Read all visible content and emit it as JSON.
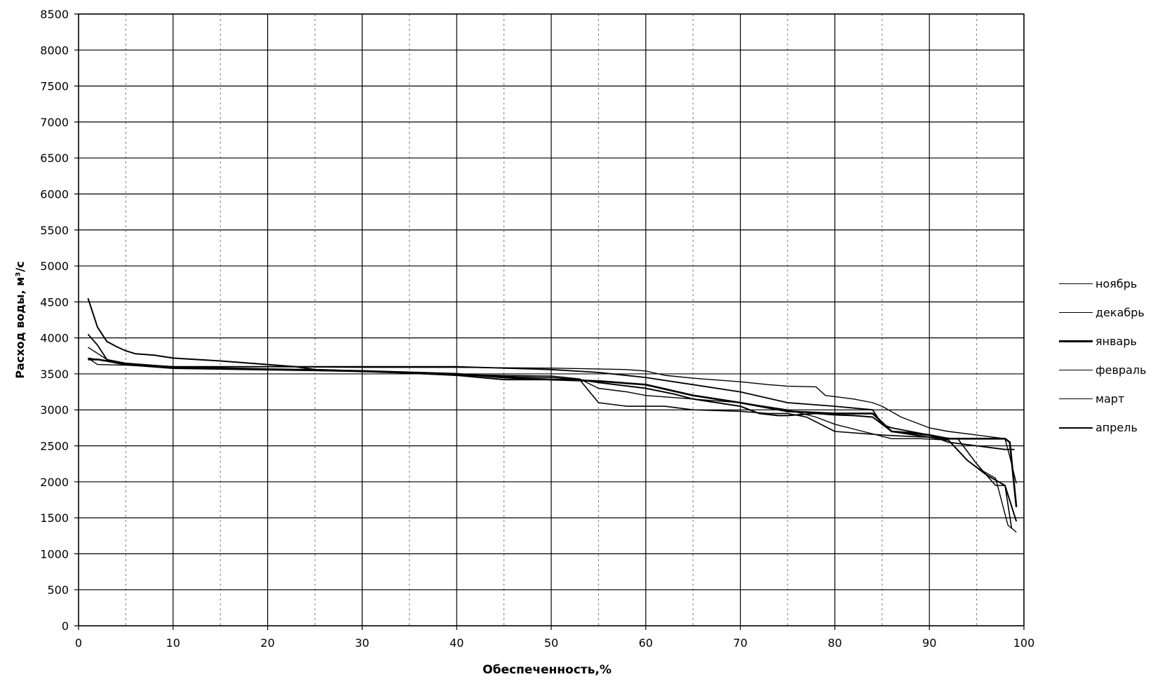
{
  "chart_data": {
    "type": "line",
    "title": "",
    "xlabel": "Обеспеченность,%",
    "ylabel": "Расход воды, м³/с",
    "xlim": [
      0,
      100
    ],
    "ylim": [
      0,
      8500
    ],
    "x_ticks": [
      "0",
      "10",
      "20",
      "30",
      "40",
      "50",
      "60",
      "70",
      "80",
      "90",
      "100"
    ],
    "y_ticks": [
      "0",
      "500",
      "1000",
      "1500",
      "2000",
      "2500",
      "3000",
      "3500",
      "4000",
      "4500",
      "5000",
      "5500",
      "6000",
      "6500",
      "7000",
      "7500",
      "8000",
      "8500"
    ],
    "grid": true,
    "legend_position": "right",
    "series": [
      {
        "name": "ноябрь",
        "color": "#000000",
        "points": [
          [
            1,
            3870
          ],
          [
            3,
            3700
          ],
          [
            5,
            3650
          ],
          [
            10,
            3600
          ],
          [
            20,
            3600
          ],
          [
            30,
            3590
          ],
          [
            40,
            3590
          ],
          [
            50,
            3580
          ],
          [
            58,
            3560
          ],
          [
            60,
            3540
          ],
          [
            62,
            3480
          ],
          [
            65,
            3440
          ],
          [
            70,
            3390
          ],
          [
            73,
            3350
          ],
          [
            75,
            3330
          ],
          [
            78,
            3320
          ],
          [
            79,
            3200
          ],
          [
            82,
            3150
          ],
          [
            84,
            3100
          ],
          [
            85,
            3050
          ],
          [
            87,
            2900
          ],
          [
            90,
            2750
          ],
          [
            92,
            2700
          ],
          [
            95,
            2650
          ],
          [
            98,
            2600
          ],
          [
            98.5,
            2350
          ],
          [
            99.2,
            1980
          ]
        ]
      },
      {
        "name": "декабрь",
        "color": "#000000",
        "points": [
          [
            1,
            4050
          ],
          [
            2,
            3900
          ],
          [
            3,
            3700
          ],
          [
            4,
            3650
          ],
          [
            5,
            3630
          ],
          [
            10,
            3600
          ],
          [
            20,
            3600
          ],
          [
            30,
            3600
          ],
          [
            40,
            3600
          ],
          [
            50,
            3560
          ],
          [
            55,
            3520
          ],
          [
            60,
            3450
          ],
          [
            65,
            3350
          ],
          [
            70,
            3250
          ],
          [
            75,
            3100
          ],
          [
            80,
            3050
          ],
          [
            84,
            3000
          ],
          [
            85,
            2800
          ],
          [
            86,
            2750
          ],
          [
            88,
            2700
          ],
          [
            90,
            2650
          ],
          [
            92,
            2550
          ],
          [
            95,
            2500
          ],
          [
            98,
            2450
          ],
          [
            99,
            2450
          ]
        ]
      },
      {
        "name": "январь",
        "color": "#000000",
        "points": [
          [
            1,
            3700
          ],
          [
            2,
            3700
          ],
          [
            3,
            3680
          ],
          [
            5,
            3630
          ],
          [
            10,
            3580
          ],
          [
            20,
            3560
          ],
          [
            30,
            3540
          ],
          [
            40,
            3500
          ],
          [
            45,
            3450
          ],
          [
            50,
            3420
          ],
          [
            55,
            3400
          ],
          [
            60,
            3350
          ],
          [
            65,
            3200
          ],
          [
            70,
            3100
          ],
          [
            75,
            2980
          ],
          [
            80,
            2950
          ],
          [
            82,
            2950
          ],
          [
            84,
            2950
          ],
          [
            86,
            2700
          ],
          [
            88,
            2680
          ],
          [
            90,
            2650
          ],
          [
            92,
            2600
          ],
          [
            95,
            2600
          ],
          [
            98,
            2600
          ],
          [
            98.5,
            2550
          ],
          [
            99.2,
            1650
          ]
        ]
      },
      {
        "name": "февраль",
        "color": "#000000",
        "points": [
          [
            1,
            3720
          ],
          [
            3,
            3680
          ],
          [
            5,
            3640
          ],
          [
            10,
            3600
          ],
          [
            20,
            3570
          ],
          [
            25,
            3560
          ],
          [
            30,
            3540
          ],
          [
            40,
            3480
          ],
          [
            50,
            3450
          ],
          [
            53,
            3420
          ],
          [
            55,
            3100
          ],
          [
            58,
            3050
          ],
          [
            62,
            3050
          ],
          [
            65,
            3000
          ],
          [
            70,
            2980
          ],
          [
            73,
            2950
          ],
          [
            75,
            2950
          ],
          [
            77,
            2900
          ],
          [
            80,
            2700
          ],
          [
            85,
            2650
          ],
          [
            88,
            2630
          ],
          [
            90,
            2620
          ],
          [
            93,
            2600
          ],
          [
            95,
            2250
          ],
          [
            97,
            1950
          ],
          [
            98,
            1950
          ],
          [
            98.7,
            1350
          ]
        ]
      },
      {
        "name": "март",
        "color": "#000000",
        "points": [
          [
            1,
            3720
          ],
          [
            2,
            3630
          ],
          [
            5,
            3620
          ],
          [
            10,
            3590
          ],
          [
            20,
            3560
          ],
          [
            30,
            3530
          ],
          [
            40,
            3490
          ],
          [
            50,
            3470
          ],
          [
            53,
            3430
          ],
          [
            55,
            3300
          ],
          [
            58,
            3250
          ],
          [
            60,
            3200
          ],
          [
            65,
            3150
          ],
          [
            70,
            3100
          ],
          [
            75,
            3000
          ],
          [
            78,
            2900
          ],
          [
            80,
            2800
          ],
          [
            83,
            2700
          ],
          [
            86,
            2600
          ],
          [
            89,
            2600
          ],
          [
            92,
            2580
          ],
          [
            94,
            2300
          ],
          [
            95,
            2200
          ],
          [
            97,
            2050
          ],
          [
            98.3,
            1400
          ],
          [
            99.2,
            1300
          ]
        ]
      },
      {
        "name": "апрель",
        "color": "#000000",
        "points": [
          [
            1,
            4550
          ],
          [
            2,
            4150
          ],
          [
            3,
            3950
          ],
          [
            4,
            3880
          ],
          [
            5,
            3820
          ],
          [
            6,
            3780
          ],
          [
            8,
            3760
          ],
          [
            10,
            3720
          ],
          [
            15,
            3680
          ],
          [
            20,
            3630
          ],
          [
            23,
            3600
          ],
          [
            25,
            3560
          ],
          [
            30,
            3540
          ],
          [
            40,
            3480
          ],
          [
            45,
            3420
          ],
          [
            50,
            3420
          ],
          [
            53,
            3420
          ],
          [
            55,
            3380
          ],
          [
            60,
            3300
          ],
          [
            63,
            3220
          ],
          [
            65,
            3150
          ],
          [
            70,
            3050
          ],
          [
            72,
            2950
          ],
          [
            74,
            2920
          ],
          [
            75,
            2920
          ],
          [
            76,
            2930
          ],
          [
            78,
            2950
          ],
          [
            80,
            2930
          ],
          [
            82,
            2920
          ],
          [
            84,
            2900
          ],
          [
            86,
            2700
          ],
          [
            88,
            2660
          ],
          [
            90,
            2620
          ],
          [
            92,
            2580
          ],
          [
            94,
            2300
          ],
          [
            96,
            2100
          ],
          [
            98,
            1950
          ],
          [
            99.2,
            1450
          ]
        ]
      }
    ]
  }
}
